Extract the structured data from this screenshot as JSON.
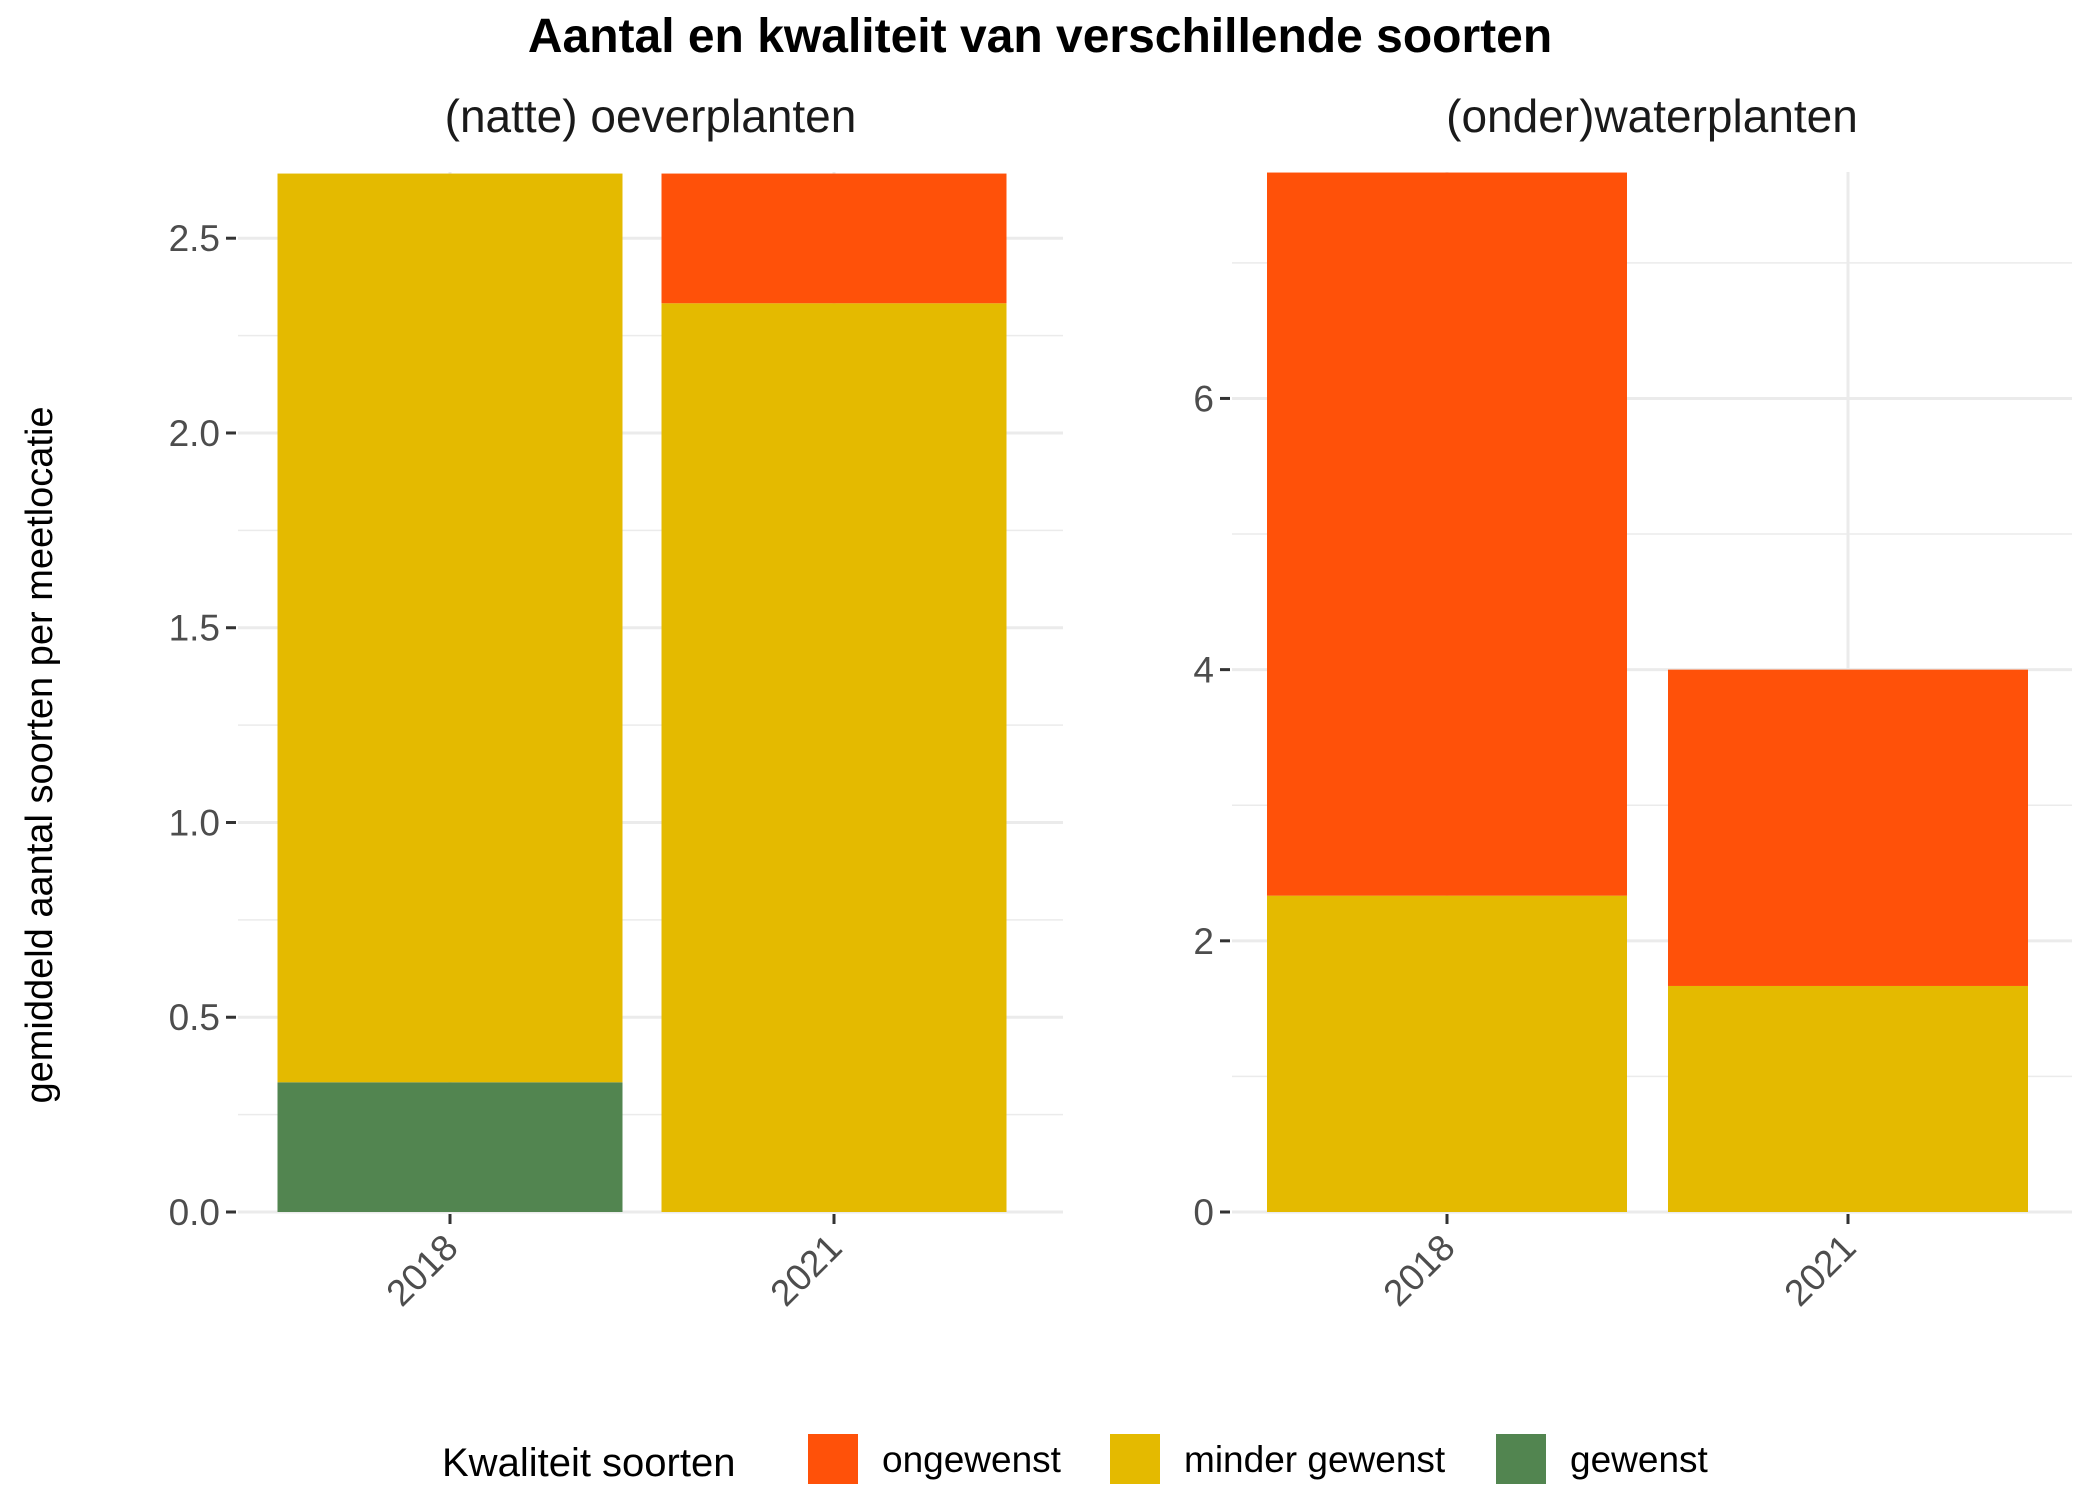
{
  "chart_data": {
    "type": "bar",
    "stacked": true,
    "title": "Aantal en kwaliteit van verschillende soorten",
    "ylabel": "gemiddeld aantal soorten per meetlocatie",
    "categories": [
      "2018",
      "2021"
    ],
    "legend": {
      "title": "Kwaliteit soorten",
      "position": "bottom",
      "items": [
        {
          "name": "ongewenst",
          "color": "#FF5109"
        },
        {
          "name": "minder gewenst",
          "color": "#E4BA00"
        },
        {
          "name": "gewenst",
          "color": "#528550"
        }
      ]
    },
    "grid": true,
    "facets": [
      {
        "title": "(natte) oeverplanten",
        "ylim": [
          0,
          2.67
        ],
        "yticks": [
          "0.0",
          "0.5",
          "1.0",
          "1.5",
          "2.0",
          "2.5"
        ],
        "ytick_values": [
          0,
          0.5,
          1.0,
          1.5,
          2.0,
          2.5
        ],
        "series": [
          {
            "name": "gewenst",
            "values": [
              0.333,
              0
            ]
          },
          {
            "name": "minder gewenst",
            "values": [
              2.333,
              2.333
            ]
          },
          {
            "name": "ongewenst",
            "values": [
              0,
              0.333
            ]
          }
        ]
      },
      {
        "title": "(onder)waterplanten",
        "ylim": [
          0,
          7.67
        ],
        "yticks": [
          "0",
          "2",
          "4",
          "6"
        ],
        "ytick_values": [
          0,
          2,
          4,
          6
        ],
        "series": [
          {
            "name": "gewenst",
            "values": [
              0,
              0
            ]
          },
          {
            "name": "minder gewenst",
            "values": [
              2.333,
              1.667
            ]
          },
          {
            "name": "ongewenst",
            "values": [
              5.333,
              2.333
            ]
          }
        ]
      }
    ]
  }
}
